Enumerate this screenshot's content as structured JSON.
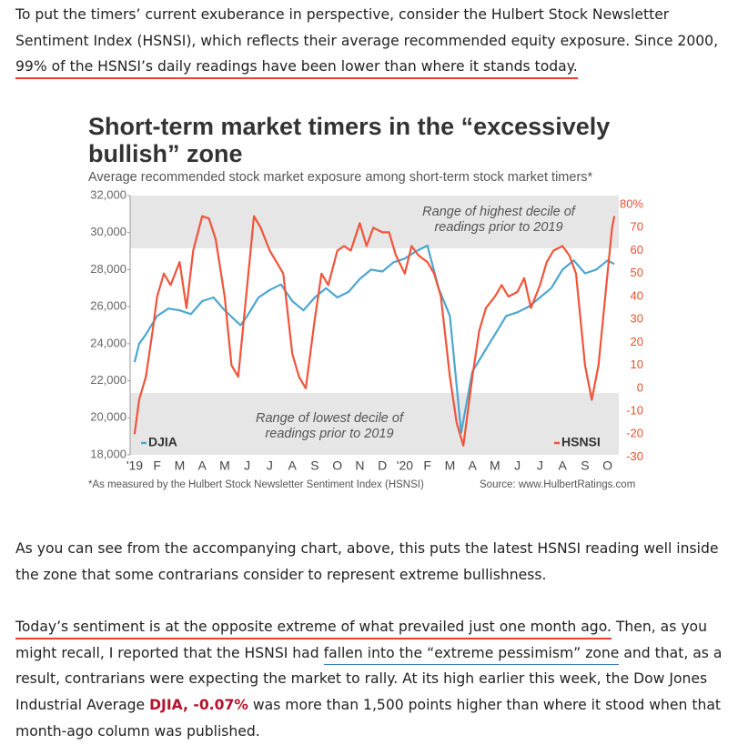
{
  "paragraphs": [
    {
      "lines": [
        {
          "segments": [
            {
              "text": "To put the timers’ current exuberance in perspective, consider the Hulbert Stock Newsletter"
            }
          ]
        },
        {
          "segments": [
            {
              "text": "Sentiment Index (HSNSI), which reflects their average recommended equity exposure. Since 2000,"
            }
          ]
        },
        {
          "segments": [
            {
              "text": "99% of the HSNSI’s daily readings have been lower than where it stands today.",
              "kind": "highlight"
            }
          ]
        }
      ]
    },
    {
      "lines": [
        {
          "segments": [
            {
              "text": "As you can see from the accompanying chart, above, this puts the latest HSNSI reading well inside"
            }
          ]
        },
        {
          "segments": [
            {
              "text": "the zone that some contrarians consider to represent extreme bullishness."
            }
          ]
        }
      ]
    },
    {
      "lines": [
        {
          "segments": [
            {
              "text": "Today’s sentiment is at the opposite extreme of what prevailed just one month ago.",
              "kind": "highlight"
            },
            {
              "text": " Then, as you"
            }
          ]
        },
        {
          "segments": [
            {
              "text": "might recall, I reported that the HSNSI had "
            },
            {
              "text": "fallen into the “extreme pessimism” zone",
              "kind": "link"
            },
            {
              "text": " and that, as a"
            }
          ]
        },
        {
          "segments": [
            {
              "text": "result, contrarians were expecting the market to rally. At its high earlier this week, the Dow Jones"
            }
          ]
        },
        {
          "segments": [
            {
              "text": "Industrial Average "
            },
            {
              "text": "DJIA, -0.07%",
              "kind": "ticker"
            },
            {
              "text": "  was more than 1,500 points higher than where it stood when that"
            }
          ]
        },
        {
          "segments": [
            {
              "text": "month-ago column was published."
            }
          ]
        }
      ]
    }
  ],
  "chart_data": {
    "type": "line",
    "title": [
      "Short-term market timers in the “excessively",
      "bullish” zone"
    ],
    "subtitle": "Average recommended stock market exposure among short-term stock market timers*",
    "footnote": "*As measured by the Hulbert Stock Newsletter Sentiment Index (HSNSI)",
    "source": "Source: www.HulbertRatings.com",
    "xlim": [
      -0.2,
      21.5
    ],
    "xticks": [
      {
        "value": 0,
        "label": "'19"
      },
      {
        "value": 1,
        "label": "F"
      },
      {
        "value": 2,
        "label": "M"
      },
      {
        "value": 3,
        "label": "A"
      },
      {
        "value": 4,
        "label": "M"
      },
      {
        "value": 5,
        "label": "J"
      },
      {
        "value": 6,
        "label": "J"
      },
      {
        "value": 7,
        "label": "A"
      },
      {
        "value": 8,
        "label": "S"
      },
      {
        "value": 9,
        "label": "O"
      },
      {
        "value": 10,
        "label": "N"
      },
      {
        "value": 11,
        "label": "D"
      },
      {
        "value": 12,
        "label": "'20"
      },
      {
        "value": 13,
        "label": "F"
      },
      {
        "value": 14,
        "label": "M"
      },
      {
        "value": 15,
        "label": "A"
      },
      {
        "value": 16,
        "label": "M"
      },
      {
        "value": 17,
        "label": "J"
      },
      {
        "value": 18,
        "label": "J"
      },
      {
        "value": 19,
        "label": "A"
      },
      {
        "value": 20,
        "label": "S"
      },
      {
        "value": 21,
        "label": "O"
      }
    ],
    "ylim": [
      18000,
      32000
    ],
    "yticks": [
      {
        "value": 18000,
        "label": "18,000"
      },
      {
        "value": 20000,
        "label": "20,000"
      },
      {
        "value": 22000,
        "label": "22,000"
      },
      {
        "value": 24000,
        "label": "24,000"
      },
      {
        "value": 26000,
        "label": "26,000"
      },
      {
        "value": 28000,
        "label": "28,000"
      },
      {
        "value": 30000,
        "label": "30,000"
      },
      {
        "value": 32000,
        "label": "32,000"
      }
    ],
    "y2lim": [
      -29,
      84
    ],
    "y2ticks": [
      -30,
      -20,
      -10,
      0,
      10,
      20,
      30,
      40,
      50,
      60,
      70,
      {
        "value": 80,
        "label": "80%"
      }
    ],
    "bands": [
      {
        "label": [
          "Range of highest decile of",
          "readings prior to 2019"
        ],
        "range": [
          61,
          84
        ],
        "axis": "y2"
      },
      {
        "label": [
          "Range of lowest decile of",
          "readings prior to 2019"
        ],
        "range": [
          -29,
          -2
        ],
        "axis": "y2"
      }
    ],
    "series": [
      {
        "name": "DJIA",
        "color": "#4da6cf",
        "axis": "y",
        "x": [
          0,
          0.2,
          0.5,
          1,
          1.5,
          2,
          2.5,
          3,
          3.5,
          4,
          4.7,
          5,
          5.5,
          6,
          6.5,
          7,
          7.5,
          8,
          8.5,
          9,
          9.5,
          10,
          10.5,
          11,
          11.5,
          12,
          12.5,
          13,
          13.5,
          14,
          14.5,
          15,
          15.5,
          16,
          16.5,
          17,
          17.5,
          18,
          18.5,
          19,
          19.5,
          20,
          20.5,
          21,
          21.3
        ],
        "values": [
          23000,
          24000,
          24500,
          25500,
          25900,
          25800,
          25600,
          26300,
          26500,
          25800,
          25000,
          25500,
          26500,
          26900,
          27200,
          26300,
          25800,
          26500,
          27000,
          26500,
          26800,
          27500,
          28000,
          27900,
          28400,
          28600,
          29000,
          29300,
          27000,
          25500,
          19200,
          22500,
          23500,
          24500,
          25500,
          25700,
          26000,
          26500,
          27000,
          28000,
          28500,
          27800,
          28000,
          28500,
          28300
        ]
      },
      {
        "name": "HSNSI",
        "color": "#f0543a",
        "axis": "y2",
        "x": [
          0,
          0.2,
          0.5,
          0.8,
          1,
          1.3,
          1.6,
          2,
          2.3,
          2.6,
          3,
          3.3,
          3.6,
          4,
          4.3,
          4.6,
          5,
          5.3,
          5.6,
          6,
          6.3,
          6.6,
          7,
          7.3,
          7.6,
          8,
          8.3,
          8.6,
          9,
          9.3,
          9.6,
          10,
          10.3,
          10.6,
          11,
          11.3,
          11.6,
          12,
          12.3,
          12.6,
          13,
          13.3,
          13.6,
          14,
          14.3,
          14.6,
          15,
          15.3,
          15.6,
          16,
          16.3,
          16.6,
          17,
          17.3,
          17.6,
          18,
          18.3,
          18.6,
          19,
          19.3,
          19.6,
          20,
          20.3,
          20.6,
          21,
          21.2,
          21.3
        ],
        "values": [
          -20,
          -5,
          5,
          25,
          40,
          50,
          45,
          55,
          35,
          60,
          75,
          74,
          65,
          40,
          10,
          5,
          45,
          75,
          70,
          60,
          55,
          50,
          15,
          5,
          0,
          30,
          50,
          45,
          60,
          62,
          60,
          72,
          62,
          70,
          68,
          68,
          58,
          50,
          62,
          58,
          55,
          50,
          40,
          5,
          -15,
          -25,
          5,
          25,
          35,
          40,
          45,
          40,
          42,
          48,
          35,
          45,
          55,
          60,
          62,
          58,
          50,
          10,
          -5,
          10,
          50,
          70,
          75
        ]
      }
    ]
  }
}
